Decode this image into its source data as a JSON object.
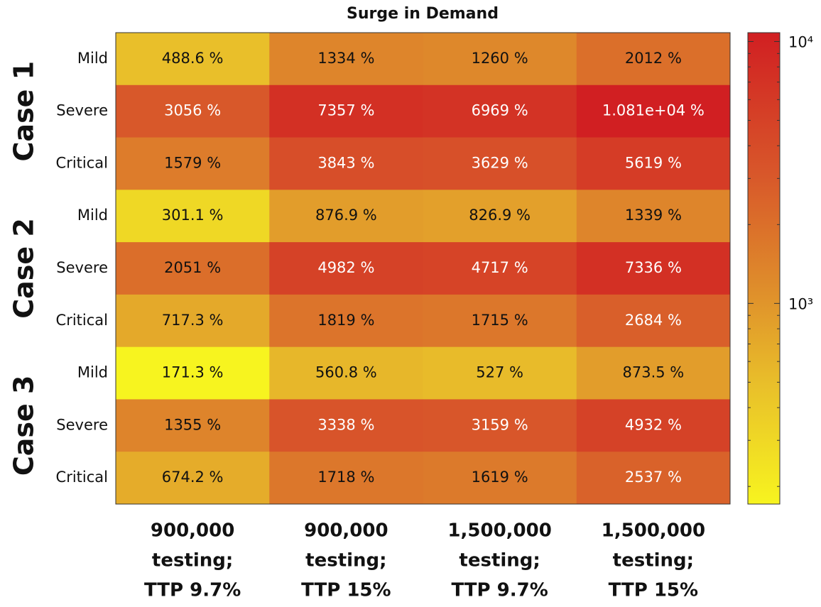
{
  "chart_data": {
    "type": "heatmap",
    "title": "Surge in Demand",
    "row_labels": [
      "Mild",
      "Severe",
      "Critical",
      "Mild",
      "Severe",
      "Critical",
      "Mild",
      "Severe",
      "Critical"
    ],
    "row_groups": [
      "Case 1",
      "Case 2",
      "Case 3"
    ],
    "col_labels": [
      [
        "900,000",
        "testing;",
        "TTP 9.7%"
      ],
      [
        "900,000",
        "testing;",
        "TTP 15%"
      ],
      [
        "1,500,000",
        "testing;",
        "TTP 9.7%"
      ],
      [
        "1,500,000",
        "testing;",
        "TTP 15%"
      ]
    ],
    "z": [
      [
        488.6,
        1334,
        1260,
        2012
      ],
      [
        3056,
        7357,
        6969,
        10810
      ],
      [
        1579,
        3843,
        3629,
        5619
      ],
      [
        301.1,
        876.9,
        826.9,
        1339
      ],
      [
        2051,
        4982,
        4717,
        7336
      ],
      [
        717.3,
        1819,
        1715,
        2684
      ],
      [
        171.3,
        560.8,
        527,
        873.5
      ],
      [
        1355,
        3338,
        3159,
        4932
      ],
      [
        674.2,
        1718,
        1619,
        2537
      ]
    ],
    "value_labels": [
      [
        "488.6 %",
        "1334 %",
        "1260 %",
        "2012 %"
      ],
      [
        "3056 %",
        "7357 %",
        "6969 %",
        "1.081e+04 %"
      ],
      [
        "1579 %",
        "3843 %",
        "3629 %",
        "5619 %"
      ],
      [
        "301.1 %",
        "876.9 %",
        "826.9 %",
        "1339 %"
      ],
      [
        "2051 %",
        "4982 %",
        "4717 %",
        "7336 %"
      ],
      [
        "717.3 %",
        "1819 %",
        "1715 %",
        "2684 %"
      ],
      [
        "171.3 %",
        "560.8 %",
        "527 %",
        "873.5 %"
      ],
      [
        "1355 %",
        "3338 %",
        "3159 %",
        "4932 %"
      ],
      [
        "674.2 %",
        "1718 %",
        "1619 %",
        "2537 %"
      ]
    ],
    "clim": [
      171.3,
      10810
    ],
    "color_scale_log": true,
    "colorscale": [
      [
        0,
        "#f7f41f"
      ],
      [
        0.25,
        "#e9c02a"
      ],
      [
        0.45,
        "#df8f2b"
      ],
      [
        0.7,
        "#d8572a"
      ],
      [
        1,
        "#d11f22"
      ]
    ],
    "cticks": [
      {
        "value": 1000,
        "label": "10³"
      },
      {
        "value": 10000,
        "label": "10⁴"
      }
    ],
    "cticks_minor": [
      200,
      300,
      400,
      500,
      600,
      700,
      800,
      900,
      2000,
      3000,
      4000,
      5000,
      6000,
      7000,
      8000,
      9000
    ]
  }
}
